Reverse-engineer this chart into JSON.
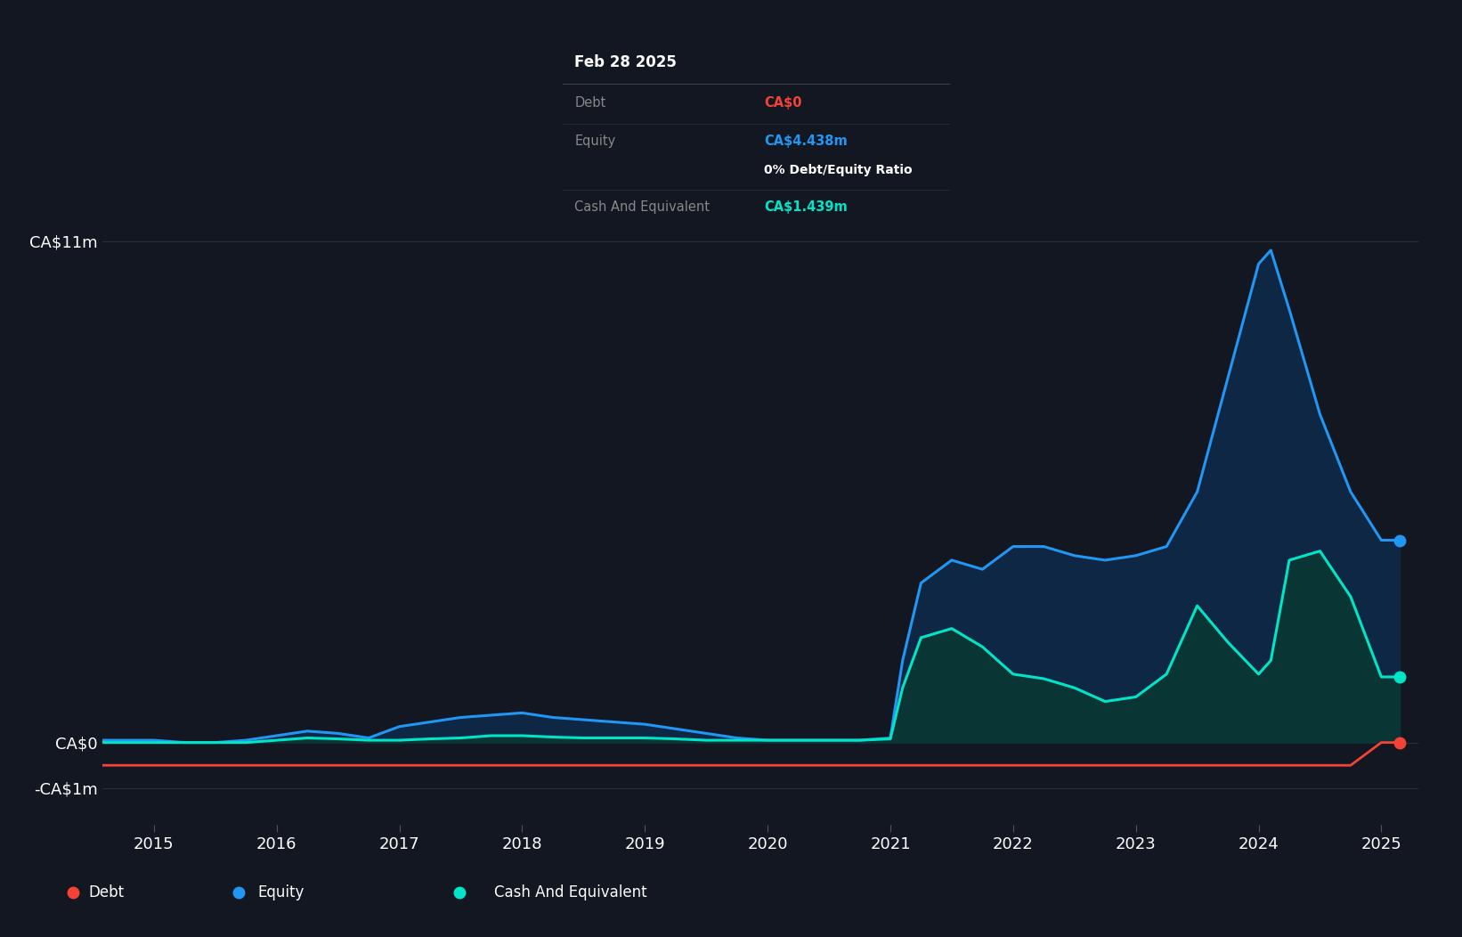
{
  "background_color": "#131722",
  "plot_bg_color": "#131722",
  "grid_color": "#2a2e39",
  "equity_color": "#2196f3",
  "equity_fill_color": "#0d2744",
  "cash_color": "#00e5c8",
  "cash_fill_color": "#0a3535",
  "debt_color": "#f44336",
  "tooltip_bg": "#000000",
  "tooltip_title": "Feb 28 2025",
  "tooltip_debt_label": "Debt",
  "tooltip_debt_value": "CA$0",
  "tooltip_debt_color": "#f44336",
  "tooltip_equity_label": "Equity",
  "tooltip_equity_value": "CA$4.438m",
  "tooltip_equity_color": "#2196f3",
  "tooltip_ratio_text": "0% Debt/Equity Ratio",
  "tooltip_cash_label": "Cash And Equivalent",
  "tooltip_cash_value": "CA$1.439m",
  "tooltip_cash_color": "#00e5c8",
  "legend_debt_label": "Debt",
  "legend_equity_label": "Equity",
  "legend_cash_label": "Cash And Equivalent",
  "legend_bg": "#1e2130",
  "x_ticks": [
    2015,
    2016,
    2017,
    2018,
    2019,
    2020,
    2021,
    2022,
    2023,
    2024,
    2025
  ],
  "xlim": [
    2014.58,
    2025.3
  ],
  "ylim": [
    -1.8,
    13.0
  ],
  "ytick_positions": [
    -1.0,
    0.0,
    11.0
  ],
  "ytick_labels": [
    "-CA$1m",
    "CA$0",
    "CA$11m"
  ],
  "x_years": [
    2014.58,
    2015.0,
    2015.25,
    2015.5,
    2015.75,
    2016.0,
    2016.25,
    2016.5,
    2016.75,
    2017.0,
    2017.25,
    2017.5,
    2017.75,
    2018.0,
    2018.25,
    2018.5,
    2018.75,
    2019.0,
    2019.25,
    2019.5,
    2019.75,
    2020.0,
    2020.25,
    2020.5,
    2020.75,
    2021.0,
    2021.1,
    2021.25,
    2021.5,
    2021.75,
    2022.0,
    2022.25,
    2022.5,
    2022.75,
    2023.0,
    2023.25,
    2023.5,
    2023.75,
    2024.0,
    2024.1,
    2024.25,
    2024.5,
    2024.75,
    2025.0,
    2025.15
  ],
  "equity_values": [
    0.05,
    0.05,
    0.0,
    0.0,
    0.05,
    0.15,
    0.25,
    0.2,
    0.1,
    0.35,
    0.45,
    0.55,
    0.6,
    0.65,
    0.55,
    0.5,
    0.45,
    0.4,
    0.3,
    0.2,
    0.1,
    0.05,
    0.05,
    0.05,
    0.05,
    0.1,
    1.8,
    3.5,
    4.0,
    3.8,
    4.3,
    4.3,
    4.1,
    4.0,
    4.1,
    4.3,
    5.5,
    8.0,
    10.5,
    10.8,
    9.5,
    7.2,
    5.5,
    4.438,
    4.438
  ],
  "cash_values": [
    0.0,
    0.0,
    0.0,
    0.0,
    0.0,
    0.05,
    0.1,
    0.08,
    0.05,
    0.05,
    0.08,
    0.1,
    0.15,
    0.15,
    0.12,
    0.1,
    0.1,
    0.1,
    0.08,
    0.05,
    0.05,
    0.05,
    0.05,
    0.05,
    0.05,
    0.08,
    1.2,
    2.3,
    2.5,
    2.1,
    1.5,
    1.4,
    1.2,
    0.9,
    1.0,
    1.5,
    3.0,
    2.2,
    1.5,
    1.8,
    4.0,
    4.2,
    3.2,
    1.439,
    1.439
  ],
  "debt_values": [
    -0.5,
    -0.5,
    -0.5,
    -0.5,
    -0.5,
    -0.5,
    -0.5,
    -0.5,
    -0.5,
    -0.5,
    -0.5,
    -0.5,
    -0.5,
    -0.5,
    -0.5,
    -0.5,
    -0.5,
    -0.5,
    -0.5,
    -0.5,
    -0.5,
    -0.5,
    -0.5,
    -0.5,
    -0.5,
    -0.5,
    -0.5,
    -0.5,
    -0.5,
    -0.5,
    -0.5,
    -0.5,
    -0.5,
    -0.5,
    -0.5,
    -0.5,
    -0.5,
    -0.5,
    -0.5,
    -0.5,
    -0.5,
    -0.5,
    -0.5,
    0.0,
    0.0
  ]
}
